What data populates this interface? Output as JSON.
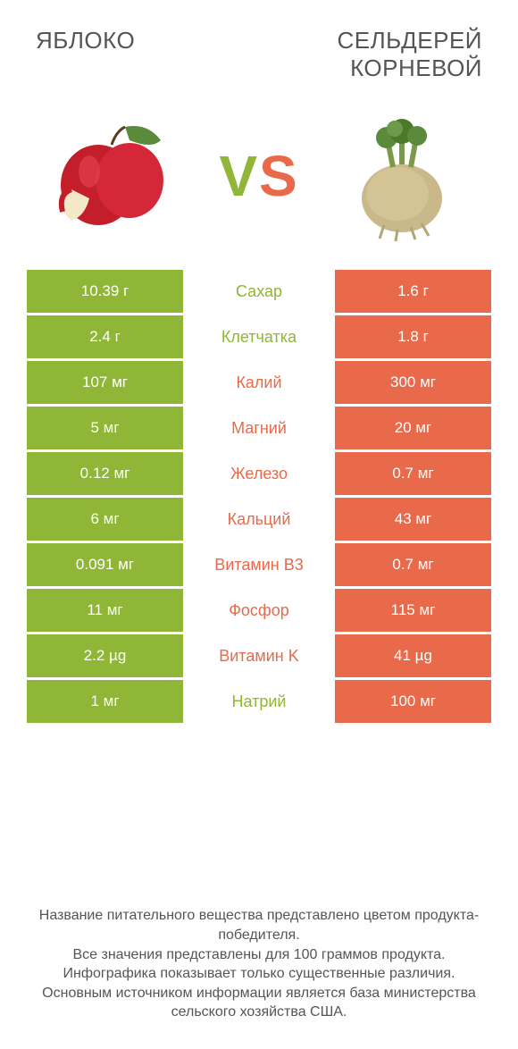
{
  "header": {
    "left_title": "Яблоко",
    "right_title": "Сельдерей корневой"
  },
  "vs": {
    "v": "V",
    "s": "S"
  },
  "colors": {
    "green": "#8fb636",
    "orange": "#e96a4a",
    "text": "#555555",
    "background": "#ffffff"
  },
  "rows": [
    {
      "left": "10.39 г",
      "mid": "Сахар",
      "right": "1.6 г",
      "winner": "left"
    },
    {
      "left": "2.4 г",
      "mid": "Клетчатка",
      "right": "1.8 г",
      "winner": "left"
    },
    {
      "left": "107 мг",
      "mid": "Калий",
      "right": "300 мг",
      "winner": "right"
    },
    {
      "left": "5 мг",
      "mid": "Магний",
      "right": "20 мг",
      "winner": "right"
    },
    {
      "left": "0.12 мг",
      "mid": "Железо",
      "right": "0.7 мг",
      "winner": "right"
    },
    {
      "left": "6 мг",
      "mid": "Кальций",
      "right": "43 мг",
      "winner": "right"
    },
    {
      "left": "0.091 мг",
      "mid": "Витамин B3",
      "right": "0.7 мг",
      "winner": "right"
    },
    {
      "left": "11 мг",
      "mid": "Фосфор",
      "right": "115 мг",
      "winner": "right"
    },
    {
      "left": "2.2 µg",
      "mid": "Витамин K",
      "right": "41 µg",
      "winner": "right"
    },
    {
      "left": "1 мг",
      "mid": "Натрий",
      "right": "100 мг",
      "winner": "left"
    }
  ],
  "footer": {
    "line1": "Название питательного вещества представлено цветом продукта-победителя.",
    "line2": "Все значения представлены для 100 граммов продукта.",
    "line3": "Инфографика показывает только существенные различия.",
    "line4": "Основным источником информации является база министерства сельского хозяйства США."
  }
}
